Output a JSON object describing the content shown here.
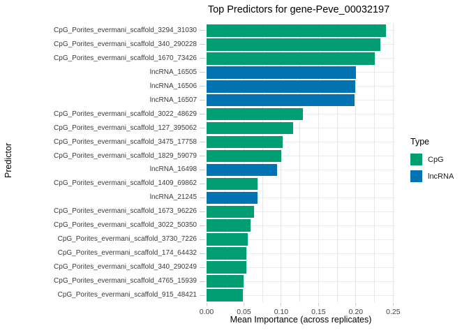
{
  "colors": {
    "cpg_green": "#029E73",
    "lncrna_blue": "#0173B2",
    "grid_vertical": "#E6E6E6",
    "grid_horizontal": "#EBEBEB",
    "tick_mark": "#CCCCCC",
    "tick_text": "#3A3A3A",
    "title_text": "#000000",
    "background": "#FFFFFF"
  },
  "chart_data": {
    "type": "bar",
    "orientation": "horizontal",
    "title": "Top Predictors for gene-Peve_00032197",
    "xlabel": "Mean Importance (across replicates)",
    "ylabel": "Predictor",
    "xlim": [
      0,
      0.2525
    ],
    "x_ticks": [
      0.0,
      0.05,
      0.1,
      0.15,
      0.2,
      0.25
    ],
    "x_tick_labels": [
      "0.00",
      "0.05",
      "0.10",
      "0.15",
      "0.20",
      "0.25"
    ],
    "minor_grid_step": 0.025,
    "grid": true,
    "legend": {
      "title": "Type",
      "position": "right",
      "entries": [
        {
          "label": "CpG",
          "color": "#029E73"
        },
        {
          "label": "lncRNA",
          "color": "#0173B2"
        }
      ]
    },
    "bars": [
      {
        "label": "CpG_Porites_evermani_scaffold_3294_31030",
        "value": 0.24,
        "type": "CpG"
      },
      {
        "label": "CpG_Porites_evermani_scaffold_340_290228",
        "value": 0.233,
        "type": "CpG"
      },
      {
        "label": "CpG_Porites_evermani_scaffold_1670_73426",
        "value": 0.225,
        "type": "CpG"
      },
      {
        "label": "lncRNA_16505",
        "value": 0.2,
        "type": "lncRNA"
      },
      {
        "label": "lncRNA_16506",
        "value": 0.199,
        "type": "lncRNA"
      },
      {
        "label": "lncRNA_16507",
        "value": 0.198,
        "type": "lncRNA"
      },
      {
        "label": "CpG_Porites_evermani_scaffold_3022_48629",
        "value": 0.129,
        "type": "CpG"
      },
      {
        "label": "CpG_Porites_evermani_scaffold_127_395062",
        "value": 0.116,
        "type": "CpG"
      },
      {
        "label": "CpG_Porites_evermani_scaffold_3475_17758",
        "value": 0.102,
        "type": "CpG"
      },
      {
        "label": "CpG_Porites_evermani_scaffold_1829_59079",
        "value": 0.1,
        "type": "CpG"
      },
      {
        "label": "lncRNA_16498",
        "value": 0.094,
        "type": "lncRNA"
      },
      {
        "label": "CpG_Porites_evermani_scaffold_1409_69862",
        "value": 0.068,
        "type": "CpG"
      },
      {
        "label": "lncRNA_21245",
        "value": 0.068,
        "type": "lncRNA"
      },
      {
        "label": "CpG_Porites_evermani_scaffold_1673_96226",
        "value": 0.064,
        "type": "CpG"
      },
      {
        "label": "CpG_Porites_evermani_scaffold_3022_50350",
        "value": 0.059,
        "type": "CpG"
      },
      {
        "label": "CpG_Porites_evermani_scaffold_3730_7226",
        "value": 0.055,
        "type": "CpG"
      },
      {
        "label": "CpG_Porites_evermani_scaffold_174_64432",
        "value": 0.053,
        "type": "CpG"
      },
      {
        "label": "CpG_Porites_evermani_scaffold_340_290249",
        "value": 0.053,
        "type": "CpG"
      },
      {
        "label": "CpG_Porites_evermani_scaffold_4765_15939",
        "value": 0.05,
        "type": "CpG"
      },
      {
        "label": "CpG_Porites_evermani_scaffold_915_48421",
        "value": 0.049,
        "type": "CpG"
      }
    ]
  }
}
